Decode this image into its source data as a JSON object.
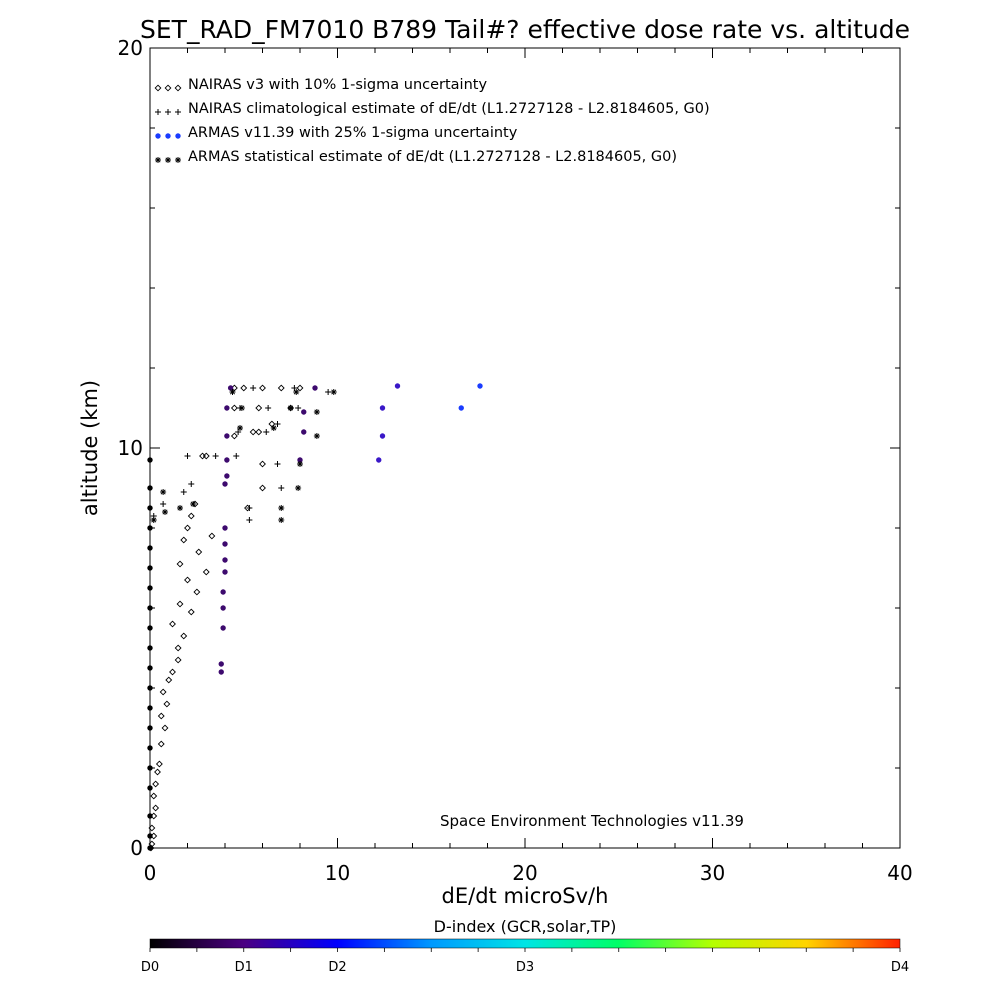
{
  "chart_data": {
    "type": "scatter",
    "title": "SET_RAD_FM7010  B789 Tail#? effective dose rate vs. altitude",
    "xlabel": "dE/dt microSv/h",
    "ylabel": "altitude (km)",
    "xlim": [
      0,
      40
    ],
    "ylim": [
      0,
      20
    ],
    "x_ticks": [
      0,
      10,
      20,
      30,
      40
    ],
    "y_ticks": [
      0,
      10,
      20
    ],
    "grid": false,
    "legend_position": "top-left",
    "legend": [
      {
        "symbol": "◇◇◇",
        "label": "NAIRAS v3 with 10% 1-sigma uncertainty"
      },
      {
        "symbol": "+++",
        "label": "NAIRAS climatological estimate of dE/dt (L1.2727128 - L2.8184605, G0)"
      },
      {
        "symbol": "●●●",
        "label": "ARMAS v11.39 with 25% 1-sigma uncertainty"
      },
      {
        "symbol": "***",
        "label": "ARMAS statistical estimate of dE/dt (L1.2727128 - L2.8184605, G0)"
      }
    ],
    "annotation": "Space Environment Technologies v11.39",
    "colorbar": {
      "title": "D-index (GCR,solar,TP)",
      "labels": [
        {
          "text": "D0",
          "pos": 0.0
        },
        {
          "text": "D1",
          "pos": 0.125
        },
        {
          "text": "D2",
          "pos": 0.25
        },
        {
          "text": "D3",
          "pos": 0.5
        },
        {
          "text": "D4",
          "pos": 1.0
        }
      ]
    },
    "series": [
      {
        "name": "NAIRAS v3 with 10% 1-sigma uncertainty",
        "marker": "diamond",
        "points": [
          [
            0.05,
            0.0
          ],
          [
            0.1,
            0.1
          ],
          [
            0.2,
            0.3
          ],
          [
            0.1,
            0.5
          ],
          [
            0.2,
            0.8
          ],
          [
            0.3,
            1.0
          ],
          [
            0.2,
            1.3
          ],
          [
            0.3,
            1.6
          ],
          [
            0.4,
            1.9
          ],
          [
            0.5,
            2.1
          ],
          [
            0.6,
            2.6
          ],
          [
            0.8,
            3.0
          ],
          [
            0.6,
            3.3
          ],
          [
            0.9,
            3.6
          ],
          [
            0.7,
            3.9
          ],
          [
            1.0,
            4.2
          ],
          [
            1.2,
            4.4
          ],
          [
            1.5,
            4.7
          ],
          [
            1.5,
            5.0
          ],
          [
            1.8,
            5.3
          ],
          [
            1.2,
            5.6
          ],
          [
            2.2,
            5.9
          ],
          [
            1.6,
            6.1
          ],
          [
            2.5,
            6.4
          ],
          [
            2.0,
            6.7
          ],
          [
            3.0,
            6.9
          ],
          [
            1.6,
            7.1
          ],
          [
            2.6,
            7.4
          ],
          [
            1.8,
            7.7
          ],
          [
            3.3,
            7.8
          ],
          [
            2.0,
            8.0
          ],
          [
            2.2,
            8.3
          ],
          [
            2.4,
            8.6
          ],
          [
            5.2,
            8.5
          ],
          [
            6.0,
            9.0
          ],
          [
            6.0,
            9.6
          ],
          [
            2.8,
            9.8
          ],
          [
            3.0,
            9.8
          ],
          [
            4.5,
            10.3
          ],
          [
            5.5,
            10.4
          ],
          [
            5.8,
            10.4
          ],
          [
            6.5,
            10.6
          ],
          [
            4.5,
            11.0
          ],
          [
            5.8,
            11.0
          ],
          [
            7.5,
            11.0
          ],
          [
            4.5,
            11.5
          ],
          [
            5.0,
            11.5
          ],
          [
            6.0,
            11.5
          ],
          [
            7.0,
            11.5
          ],
          [
            8.0,
            11.5
          ]
        ]
      },
      {
        "name": "NAIRAS climatological estimate of dE/dt (L1.2727128 - L2.8184605, G0)",
        "marker": "plus",
        "points": [
          [
            0.2,
            8.3
          ],
          [
            0.7,
            8.6
          ],
          [
            1.8,
            8.9
          ],
          [
            2.2,
            9.1
          ],
          [
            5.3,
            8.5
          ],
          [
            5.3,
            8.2
          ],
          [
            7.0,
            9.0
          ],
          [
            6.8,
            9.6
          ],
          [
            2.0,
            9.8
          ],
          [
            3.5,
            9.8
          ],
          [
            4.6,
            9.8
          ],
          [
            4.7,
            10.4
          ],
          [
            6.2,
            10.4
          ],
          [
            6.8,
            10.6
          ],
          [
            4.8,
            11.0
          ],
          [
            6.3,
            11.0
          ],
          [
            7.9,
            11.0
          ],
          [
            5.5,
            11.5
          ],
          [
            7.7,
            11.5
          ],
          [
            9.5,
            11.4
          ]
        ]
      },
      {
        "name": "ARMAS v11.39 with 25% 1-sigma uncertainty",
        "marker": "dot",
        "points": [
          [
            0.0,
            0.0
          ],
          [
            0.0,
            0.3
          ],
          [
            0.0,
            0.8
          ],
          [
            0.0,
            1.5
          ],
          [
            0.0,
            2.0
          ],
          [
            0.0,
            2.5
          ],
          [
            0.0,
            3.0
          ],
          [
            0.0,
            3.5
          ],
          [
            0.0,
            4.0
          ],
          [
            0.0,
            4.5
          ],
          [
            0.0,
            5.0
          ],
          [
            0.0,
            5.5
          ],
          [
            0.0,
            6.0
          ],
          [
            0.0,
            6.5
          ],
          [
            0.0,
            7.0
          ],
          [
            0.0,
            7.5
          ],
          [
            0.0,
            8.0
          ],
          [
            0.0,
            8.5
          ],
          [
            0.0,
            9.0
          ],
          [
            0.0,
            9.7
          ],
          [
            3.8,
            4.4
          ],
          [
            3.8,
            4.6
          ],
          [
            3.9,
            5.5
          ],
          [
            3.9,
            6.0
          ],
          [
            3.9,
            6.4
          ],
          [
            4.0,
            6.9
          ],
          [
            4.0,
            7.2
          ],
          [
            4.0,
            7.6
          ],
          [
            4.0,
            8.0
          ],
          [
            4.0,
            9.1
          ],
          [
            4.1,
            9.3
          ],
          [
            4.1,
            9.7
          ],
          [
            4.1,
            10.3
          ],
          [
            4.1,
            11.0
          ],
          [
            4.3,
            11.5
          ],
          [
            8.0,
            9.7
          ],
          [
            8.2,
            10.4
          ],
          [
            8.2,
            10.9
          ],
          [
            8.8,
            11.5
          ],
          [
            12.2,
            9.7
          ],
          [
            12.4,
            10.3
          ],
          [
            12.4,
            11.0
          ],
          [
            13.2,
            11.55
          ],
          [
            16.6,
            11.0
          ],
          [
            17.6,
            11.55
          ]
        ]
      },
      {
        "name": "ARMAS statistical estimate of dE/dt (L1.2727128 - L2.8184605, G0)",
        "marker": "asterisk",
        "points": [
          [
            0.2,
            8.2
          ],
          [
            0.8,
            8.4
          ],
          [
            0.7,
            8.9
          ],
          [
            1.6,
            8.5
          ],
          [
            2.3,
            8.6
          ],
          [
            7.0,
            8.5
          ],
          [
            7.0,
            8.2
          ],
          [
            7.9,
            9.0
          ],
          [
            8.0,
            9.6
          ],
          [
            4.8,
            10.5
          ],
          [
            6.6,
            10.5
          ],
          [
            8.9,
            10.3
          ],
          [
            4.9,
            11.0
          ],
          [
            7.5,
            11.0
          ],
          [
            8.9,
            10.9
          ],
          [
            4.4,
            11.4
          ],
          [
            7.8,
            11.4
          ],
          [
            9.8,
            11.4
          ]
        ]
      }
    ]
  }
}
